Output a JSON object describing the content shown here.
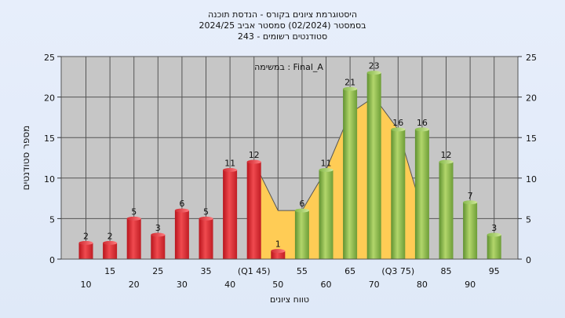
{
  "chart_data": {
    "type": "bar",
    "title_lines": [
      "היסטוגרמת ציונים בקורס - הנדסת תוכנה",
      "בסמסטר  (02/2024)  סמסטר אביב 2024/25",
      "סטודנטים רשומים - 243"
    ],
    "xlabel": "טווח ציונים",
    "ylabel": "מספר סטודנטים",
    "annotation": "במשימה : Final_A",
    "ylim": [
      0,
      25
    ],
    "yticks": [
      0,
      5,
      10,
      15,
      20,
      25
    ],
    "grid": true,
    "legend": "none",
    "categories": [
      "10",
      "15",
      "20",
      "25",
      "30",
      "35",
      "40",
      "(Q1 45)",
      "50",
      "55",
      "60",
      "65",
      "70",
      "(Q3 75)",
      "80",
      "85",
      "90",
      "95"
    ],
    "values": [
      2,
      2,
      5,
      3,
      6,
      5,
      11,
      12,
      1,
      6,
      11,
      21,
      23,
      16,
      16,
      12,
      7,
      3
    ],
    "bar_colors": [
      "red",
      "red",
      "red",
      "red",
      "red",
      "red",
      "red",
      "red",
      "red",
      "green",
      "green",
      "green",
      "green",
      "green",
      "green",
      "green",
      "green",
      "green"
    ],
    "distribution_area": [
      {
        "x": "(Q1 45)",
        "y": 12
      },
      {
        "x": "50",
        "y": 6
      },
      {
        "x": "55",
        "y": 6
      },
      {
        "x": "60",
        "y": 11
      },
      {
        "x": "65",
        "y": 18
      },
      {
        "x": "70",
        "y": 20
      },
      {
        "x": "(Q3 75)",
        "y": 16
      },
      {
        "x": "80",
        "y": 6
      }
    ],
    "colors": {
      "red_bar": "#e8363c",
      "green_bar": "#8fbf45",
      "area": "#ffcc55",
      "plot_bg": "#c6c6c6",
      "grid": "#555555"
    }
  }
}
